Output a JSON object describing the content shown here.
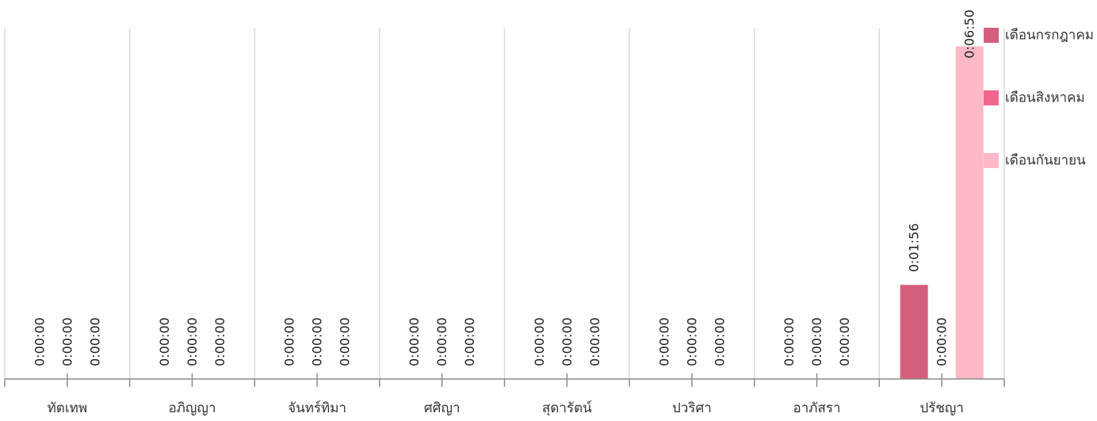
{
  "chart_data": {
    "type": "bar",
    "categories": [
      "ทัตเทพ",
      "อภิญญา",
      "จันทร์ทิมา",
      "ศศิญา",
      "สุดารัตน์",
      "ปวริศา",
      "อาภัสรา",
      "ปรัชญา"
    ],
    "series": [
      {
        "name": "เดือนกรกฎาคม",
        "color": "#d45f7d",
        "values": [
          "0:00:00",
          "0:00:00",
          "0:00:00",
          "0:00:00",
          "0:00:00",
          "0:00:00",
          "0:00:00",
          "0:01:56"
        ]
      },
      {
        "name": "เดือนสิงหาคม",
        "color": "#f2688d",
        "values": [
          "0:00:00",
          "0:00:00",
          "0:00:00",
          "0:00:00",
          "0:00:00",
          "0:00:00",
          "0:00:00",
          "0:00:00"
        ]
      },
      {
        "name": "เดือนกันยายน",
        "color": "#ffb8c7",
        "values": [
          "0:00:00",
          "0:00:00",
          "0:00:00",
          "0:00:00",
          "0:00:00",
          "0:00:00",
          "0:00:00",
          "0:06:50"
        ]
      }
    ],
    "ylim": [
      0,
      432
    ],
    "grid": true,
    "legend": "top-right"
  }
}
